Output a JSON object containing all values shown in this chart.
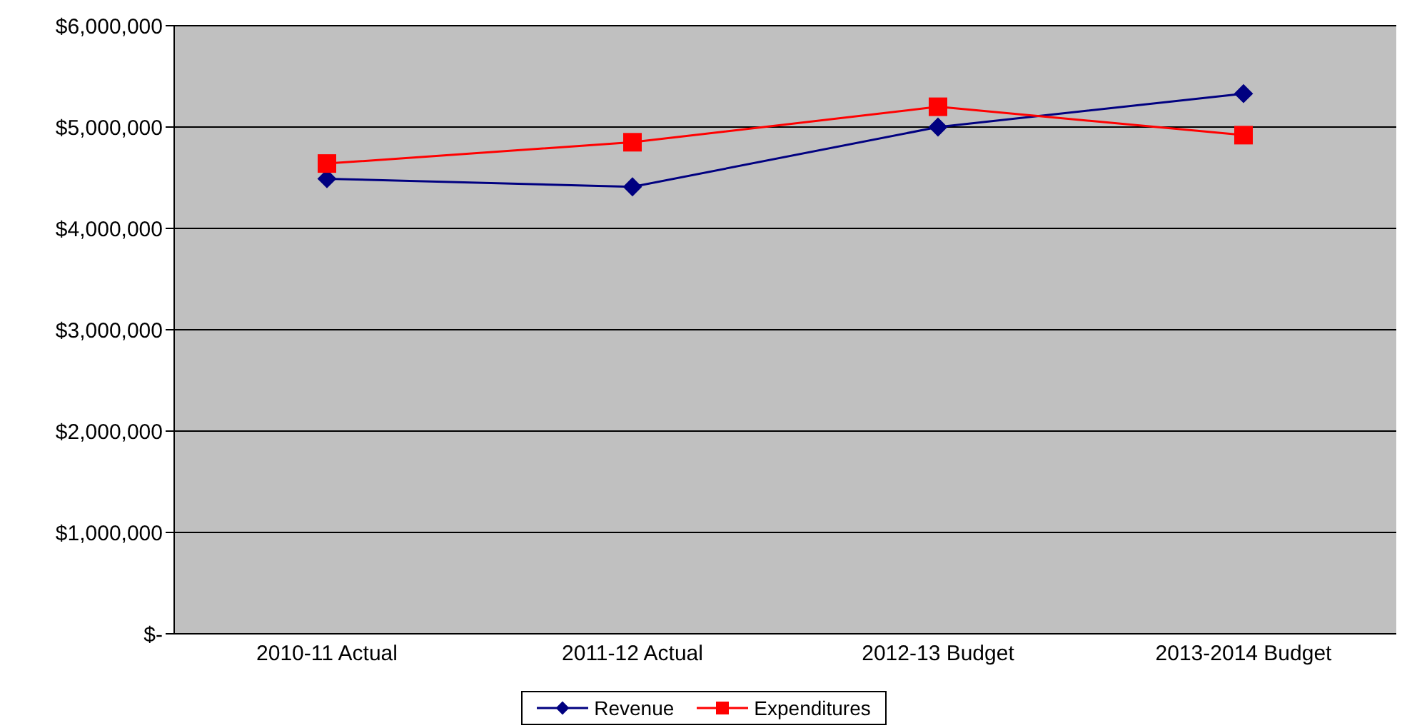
{
  "chart_data": {
    "type": "line",
    "categories": [
      "2010-11 Actual",
      "2011-12 Actual",
      "2012-13 Budget",
      "2013-2014 Budget"
    ],
    "series": [
      {
        "name": "Revenue",
        "color": "#000080",
        "marker": "diamond",
        "values": [
          4490000,
          4410000,
          5000000,
          5330000
        ]
      },
      {
        "name": "Expenditures",
        "color": "#ff0000",
        "marker": "square",
        "values": [
          4640000,
          4850000,
          5200000,
          4920000
        ]
      }
    ],
    "ylim": [
      0,
      6000000
    ],
    "yticks": [
      {
        "value": 0,
        "label": "$-"
      },
      {
        "value": 1000000,
        "label": "$1,000,000"
      },
      {
        "value": 2000000,
        "label": "$2,000,000"
      },
      {
        "value": 3000000,
        "label": "$3,000,000"
      },
      {
        "value": 4000000,
        "label": "$4,000,000"
      },
      {
        "value": 5000000,
        "label": "$5,000,000"
      },
      {
        "value": 6000000,
        "label": "$6,000,000"
      }
    ],
    "grid": "y",
    "legend": "bottom",
    "line_style": "solid"
  }
}
